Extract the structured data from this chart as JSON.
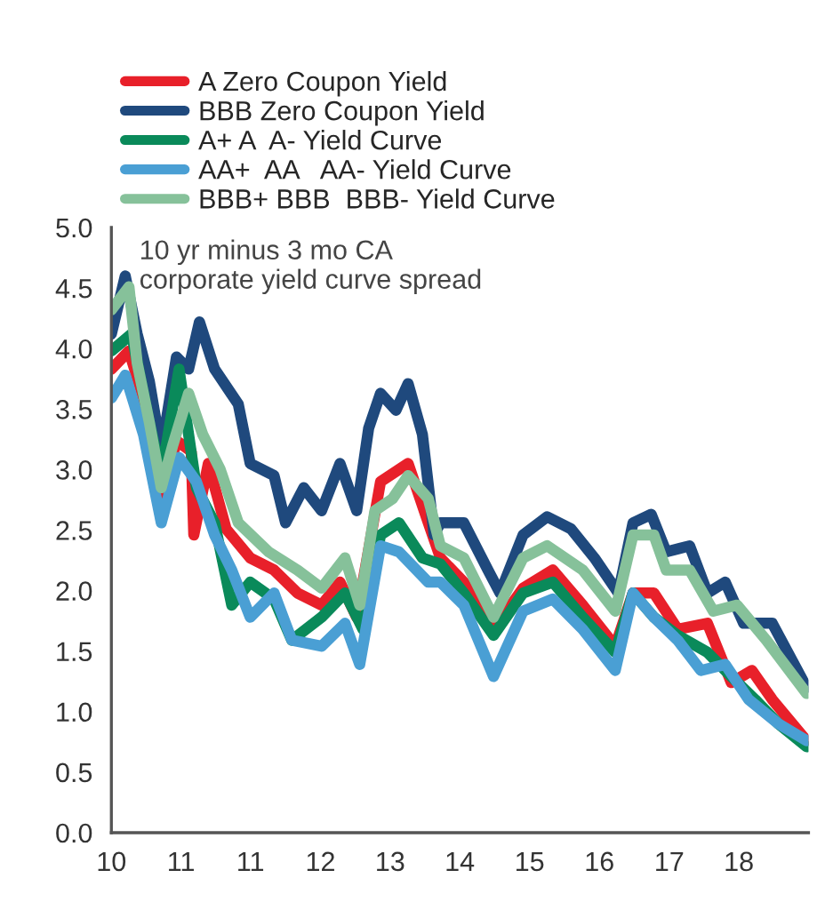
{
  "chart_data": {
    "type": "line",
    "annotations": [
      "10 yr minus 3 mo CA\ncorporate yield curve spread"
    ],
    "xlim": [
      "2010-02-14",
      "2018-12-03"
    ],
    "xticks": [
      {
        "value": "2010-02-14",
        "label": "10"
      },
      {
        "value": "2011-01-01",
        "label": "11"
      },
      {
        "value": "2011-11-17",
        "label": "11"
      },
      {
        "value": "2012-10-05",
        "label": "12"
      },
      {
        "value": "2013-08-22",
        "label": "13"
      },
      {
        "value": "2014-07-09",
        "label": "14"
      },
      {
        "value": "2015-05-27",
        "label": "15"
      },
      {
        "value": "2016-04-13",
        "label": "16"
      },
      {
        "value": "2017-03-01",
        "label": "17"
      },
      {
        "value": "2018-01-16",
        "label": "18"
      }
    ],
    "ylim": [
      0,
      5
    ],
    "yticks": [
      {
        "value": 0,
        "label": "0.0"
      },
      {
        "value": 0.5,
        "label": "0.5"
      },
      {
        "value": 1,
        "label": "1.0"
      },
      {
        "value": 1.5,
        "label": "1.5"
      },
      {
        "value": 2,
        "label": "2.0"
      },
      {
        "value": 2.5,
        "label": "2.5"
      },
      {
        "value": 3,
        "label": "3.0"
      },
      {
        "value": 3.5,
        "label": "3.5"
      },
      {
        "value": 4,
        "label": "4.0"
      },
      {
        "value": 4.5,
        "label": "4.5"
      },
      {
        "value": 5,
        "label": "5.0"
      }
    ],
    "grid": false,
    "legend": "top",
    "line_style": "solid",
    "marker": "none",
    "series": [
      {
        "name": "A Zero Coupon Yield",
        "color": "#e8202a",
        "x": [
          "2010-02-14",
          "2010-05-06",
          "2010-07-12",
          "2010-10-02",
          "2010-12-11",
          "2011-02-17",
          "2011-03-01",
          "2011-05-07",
          "2011-07-28",
          "2011-11-16",
          "2012-03-05",
          "2012-06-21",
          "2012-10-10",
          "2013-01-03",
          "2013-03-21",
          "2013-07-09",
          "2013-11-13",
          "2014-02-14",
          "2014-04-11",
          "2014-07-28",
          "2014-12-12",
          "2015-04-27",
          "2015-09-11",
          "2016-01-27",
          "2016-06-25",
          "2016-09-15",
          "2016-12-20",
          "2017-04-09",
          "2017-08-24",
          "2017-12-12",
          "2018-03-17",
          "2018-06-19",
          "2018-11-24"
        ],
        "values": [
          3.83,
          3.98,
          3.59,
          2.71,
          3.24,
          3.15,
          2.46,
          3.05,
          2.51,
          2.27,
          2.17,
          1.98,
          1.88,
          2.07,
          1.78,
          2.9,
          3.05,
          2.56,
          2.27,
          2.07,
          1.68,
          2.02,
          2.17,
          1.88,
          1.54,
          1.98,
          1.98,
          1.68,
          1.73,
          1.24,
          1.34,
          1.1,
          0.76
        ]
      },
      {
        "name": "BBB Zero Coupon Yield",
        "color": "#1f497d",
        "x": [
          "2010-02-14",
          "2010-04-19",
          "2010-06-13",
          "2010-08-08",
          "2010-10-02",
          "2010-12-11",
          "2011-02-05",
          "2011-03-27",
          "2011-06-05",
          "2011-09-22",
          "2011-11-16",
          "2012-03-05",
          "2012-04-27",
          "2012-07-20",
          "2012-10-10",
          "2013-01-03",
          "2013-03-21",
          "2013-05-15",
          "2013-07-09",
          "2013-09-18",
          "2013-11-13",
          "2014-01-18",
          "2014-03-13",
          "2014-04-11",
          "2014-07-28",
          "2014-11-16",
          "2015-01-11",
          "2015-04-27",
          "2015-08-16",
          "2015-12-04",
          "2016-03-21",
          "2016-07-09",
          "2016-09-15",
          "2016-12-08",
          "2017-02-15",
          "2017-06-03",
          "2017-08-24",
          "2017-11-14",
          "2018-02-07",
          "2018-06-19",
          "2018-11-24"
        ],
        "values": [
          4.12,
          4.6,
          4.12,
          3.73,
          3.15,
          3.93,
          3.83,
          4.22,
          3.83,
          3.54,
          3.05,
          2.95,
          2.56,
          2.85,
          2.66,
          3.05,
          2.66,
          3.34,
          3.63,
          3.49,
          3.71,
          3.29,
          2.46,
          2.56,
          2.56,
          2.17,
          1.98,
          2.46,
          2.61,
          2.51,
          2.27,
          1.98,
          2.56,
          2.63,
          2.32,
          2.37,
          1.98,
          2.07,
          1.73,
          1.73,
          1.2
        ]
      },
      {
        "name": "A+ A  A- Yield Curve",
        "color": "#0a8a5a",
        "x": [
          "2010-02-14",
          "2010-05-18",
          "2010-08-08",
          "2010-10-02",
          "2010-12-23",
          "2011-03-13",
          "2011-06-05",
          "2011-08-23",
          "2011-11-16",
          "2012-03-05",
          "2012-05-26",
          "2012-10-10",
          "2013-01-26",
          "2013-04-19",
          "2013-07-09",
          "2013-10-02",
          "2014-01-18",
          "2014-04-11",
          "2014-07-28",
          "2014-12-12",
          "2015-04-27",
          "2015-09-11",
          "2016-01-27",
          "2016-06-25",
          "2016-09-15",
          "2016-12-20",
          "2017-04-09",
          "2017-08-24",
          "2017-12-12",
          "2018-04-01",
          "2018-07-17",
          "2018-11-24"
        ],
        "values": [
          3.98,
          4.12,
          3.39,
          2.95,
          3.83,
          2.85,
          2.56,
          1.88,
          2.07,
          1.93,
          1.59,
          1.78,
          1.98,
          1.68,
          2.46,
          2.56,
          2.27,
          2.22,
          1.98,
          1.63,
          1.98,
          2.07,
          1.78,
          1.49,
          1.98,
          1.78,
          1.63,
          1.49,
          1.29,
          1.1,
          0.9,
          0.71
        ]
      },
      {
        "name": "AA+  AA   AA- Yield Curve",
        "color": "#4a9fd4",
        "x": [
          "2010-02-14",
          "2010-04-19",
          "2010-07-12",
          "2010-10-02",
          "2010-12-23",
          "2011-03-13",
          "2011-06-05",
          "2011-08-23",
          "2011-11-16",
          "2012-03-05",
          "2012-05-26",
          "2012-10-10",
          "2013-01-26",
          "2013-04-04",
          "2013-07-09",
          "2013-10-02",
          "2014-02-14",
          "2014-04-11",
          "2014-07-28",
          "2014-12-12",
          "2015-04-27",
          "2015-09-11",
          "2016-01-27",
          "2016-06-25",
          "2016-09-15",
          "2016-12-20",
          "2017-04-09",
          "2017-07-25",
          "2017-11-14",
          "2018-03-02",
          "2018-07-17",
          "2018-11-24"
        ],
        "values": [
          3.59,
          3.78,
          3.29,
          2.56,
          3.1,
          2.9,
          2.46,
          2.17,
          1.78,
          1.98,
          1.59,
          1.54,
          1.73,
          1.39,
          2.37,
          2.32,
          2.07,
          2.07,
          1.88,
          1.29,
          1.83,
          1.93,
          1.68,
          1.34,
          1.98,
          1.78,
          1.59,
          1.34,
          1.39,
          1.1,
          0.9,
          0.76
        ]
      },
      {
        "name": "BBB+ BBB  BBB- Yield Curve",
        "color": "#86c19a",
        "x": [
          "2010-02-14",
          "2010-05-06",
          "2010-06-13",
          "2010-08-08",
          "2010-10-02",
          "2010-11-24",
          "2011-02-05",
          "2011-04-11",
          "2011-07-01",
          "2011-09-22",
          "2012-02-09",
          "2012-06-21",
          "2012-10-10",
          "2013-01-26",
          "2013-04-04",
          "2013-06-13",
          "2013-09-03",
          "2013-11-13",
          "2014-02-14",
          "2014-04-11",
          "2014-07-28",
          "2014-12-12",
          "2015-04-27",
          "2015-08-16",
          "2016-01-27",
          "2016-06-25",
          "2016-09-15",
          "2016-12-20",
          "2017-02-15",
          "2017-06-03",
          "2017-09-20",
          "2018-01-08",
          "2018-05-23",
          "2018-11-24"
        ],
        "values": [
          4.32,
          4.51,
          3.88,
          3.39,
          2.85,
          3.2,
          3.63,
          3.29,
          3.0,
          2.56,
          2.32,
          2.17,
          2.02,
          2.27,
          1.88,
          2.66,
          2.76,
          2.95,
          2.76,
          2.37,
          2.27,
          1.78,
          2.27,
          2.37,
          2.17,
          1.83,
          2.46,
          2.46,
          2.17,
          2.17,
          1.83,
          1.88,
          1.59,
          1.15
        ]
      }
    ]
  }
}
